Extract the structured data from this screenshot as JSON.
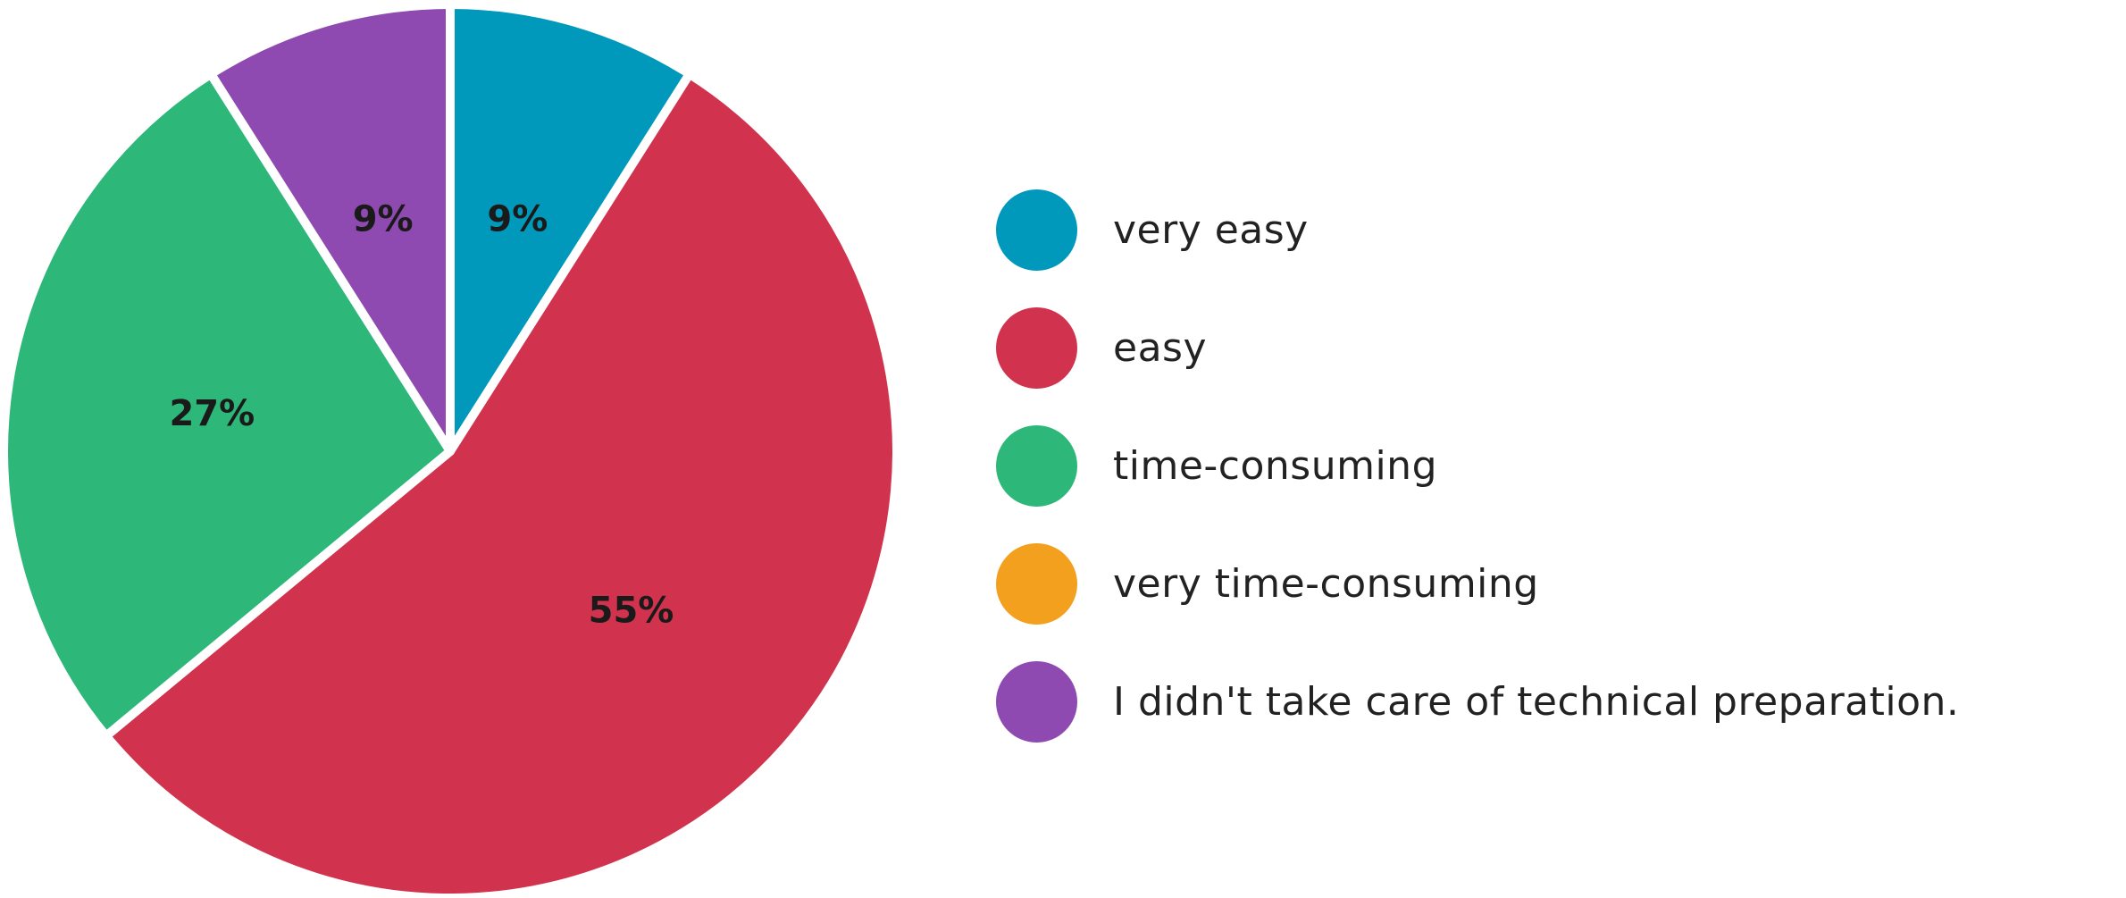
{
  "chart_data": {
    "type": "pie",
    "title": "",
    "start_angle_deg": 0,
    "direction": "clockwise",
    "legend_position": "right",
    "slices": [
      {
        "label": "very easy",
        "value": 9,
        "value_label": "9%",
        "color": "#0099BB"
      },
      {
        "label": "easy",
        "value": 55,
        "value_label": "55%",
        "color": "#D1334E"
      },
      {
        "label": "time-consuming",
        "value": 27,
        "value_label": "27%",
        "color": "#2DB87A"
      },
      {
        "label": "very time-consuming",
        "value": 0,
        "value_label": "",
        "color": "#F2A01E"
      },
      {
        "label": "I didn't take care of technical preparation.",
        "value": 9,
        "value_label": "9%",
        "color": "#8E4AB1"
      }
    ]
  }
}
